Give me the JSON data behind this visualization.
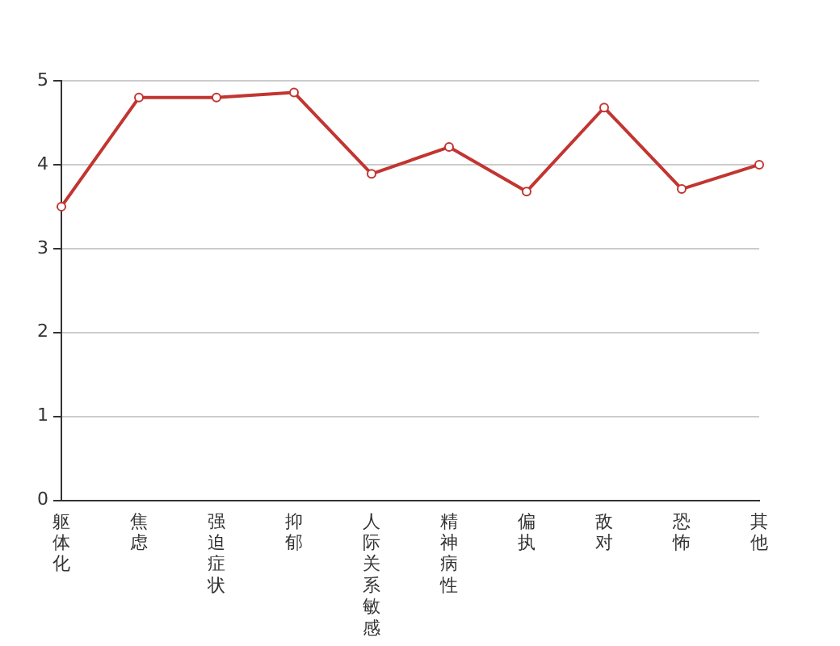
{
  "chart_data": {
    "type": "line",
    "categories": [
      "躯体化",
      "焦虑",
      "强迫症状",
      "抑郁",
      "人际关系敏感",
      "精神病性",
      "偏执",
      "敌对",
      "恐怖",
      "其他"
    ],
    "series": [
      {
        "color": "#c23531",
        "values": [
          3.5,
          4.8,
          4.8,
          4.86,
          3.89,
          4.21,
          3.68,
          4.68,
          3.71,
          4.0
        ]
      }
    ],
    "ylim": [
      0,
      5
    ],
    "yticks": [
      0,
      1,
      2,
      3,
      4,
      5
    ],
    "grid": "y",
    "legend": false,
    "marker": "circle",
    "line_style": "solid"
  }
}
